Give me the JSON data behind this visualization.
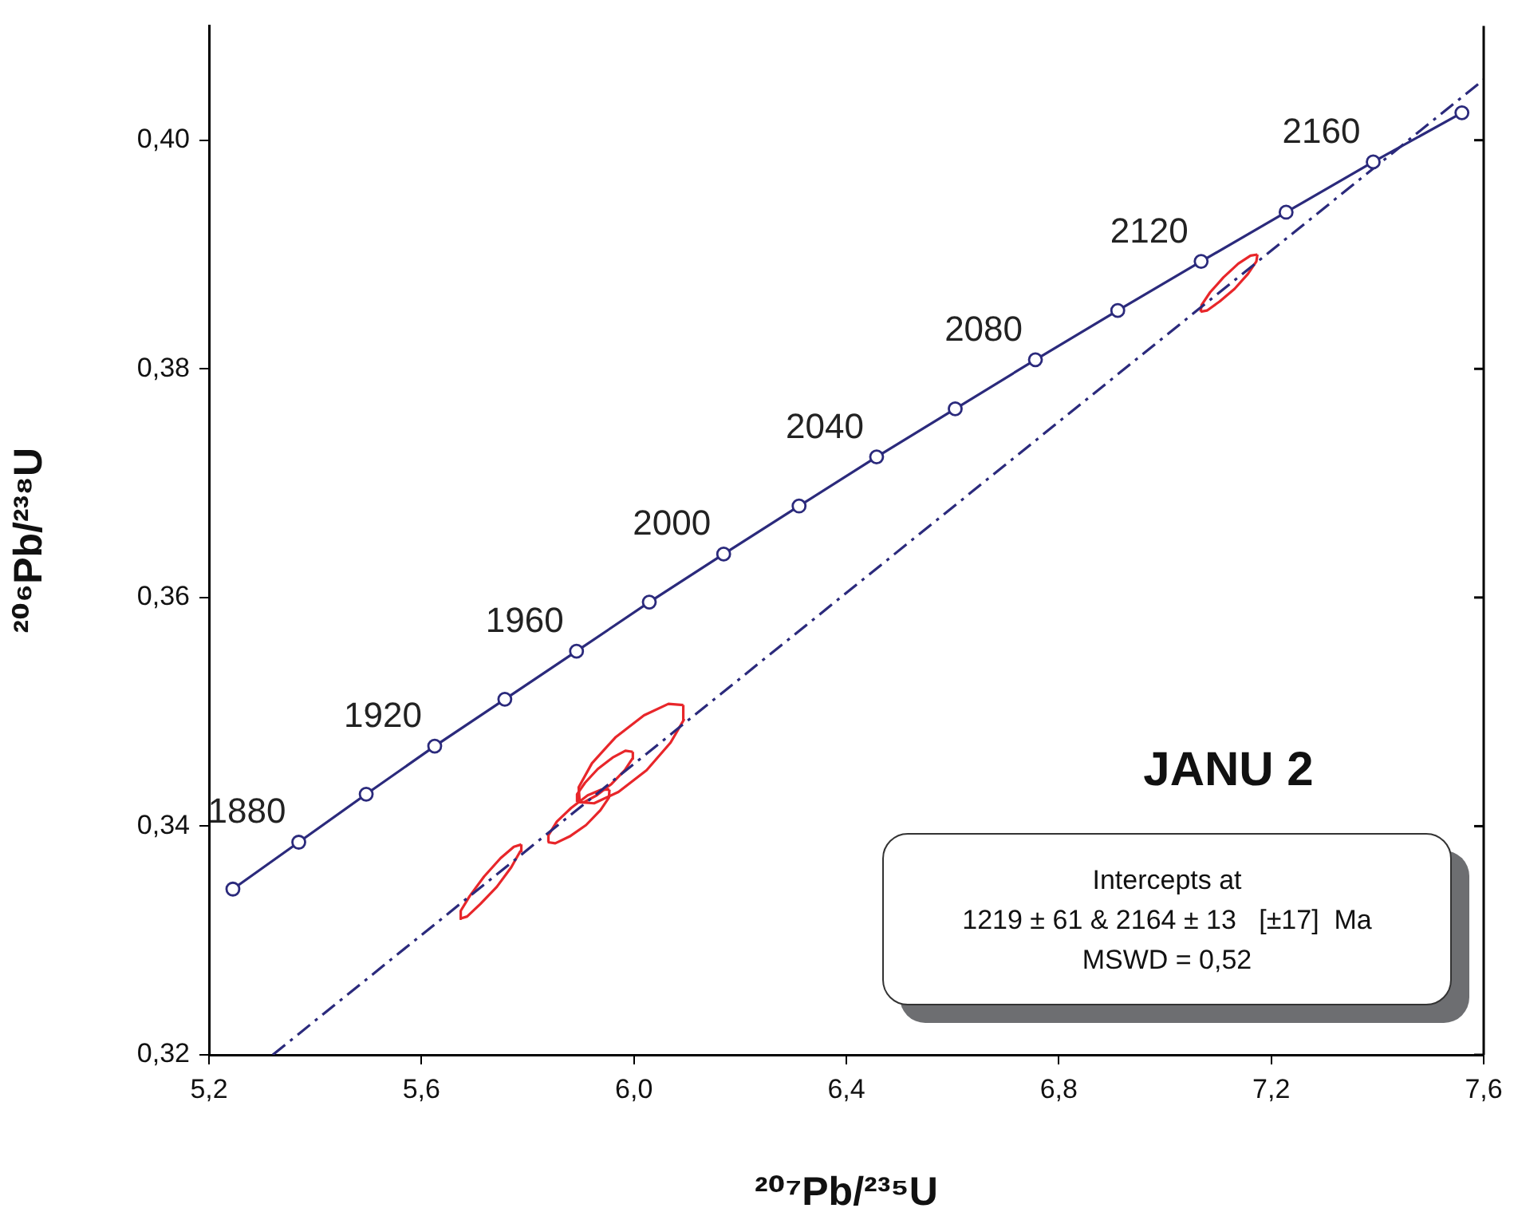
{
  "chart_data": {
    "type": "line",
    "xlabel": "²⁰⁷Pb/²³⁵U",
    "ylabel": "²⁰⁶Pb/²³⁸U",
    "xlim": [
      5.2,
      7.6
    ],
    "ylim": [
      0.32,
      0.41
    ],
    "xticks": [
      {
        "value": 5.2,
        "label": "5,2"
      },
      {
        "value": 5.6,
        "label": "5,6"
      },
      {
        "value": 6.0,
        "label": "6,0"
      },
      {
        "value": 6.4,
        "label": "6,4"
      },
      {
        "value": 6.8,
        "label": "6,8"
      },
      {
        "value": 7.2,
        "label": "7,2"
      },
      {
        "value": 7.6,
        "label": "7,6"
      }
    ],
    "yticks": [
      {
        "value": 0.32,
        "label": "0,32"
      },
      {
        "value": 0.34,
        "label": "0,34"
      },
      {
        "value": 0.36,
        "label": "0,36"
      },
      {
        "value": 0.38,
        "label": "0,38"
      },
      {
        "value": 0.4,
        "label": "0,40"
      }
    ],
    "grid": false,
    "legend": false,
    "series": [
      {
        "type": "line",
        "color": "#2b2a7c",
        "marker": "circle",
        "line_style": "solid",
        "x": [
          5.245,
          5.369,
          5.496,
          5.625,
          5.757,
          5.892,
          6.029,
          6.169,
          6.311,
          6.457,
          6.605,
          6.756,
          6.911,
          7.068,
          7.228,
          7.392,
          7.559
        ],
        "values": [
          0.3345,
          0.3386,
          0.3428,
          0.347,
          0.3511,
          0.3553,
          0.3596,
          0.3638,
          0.368,
          0.3723,
          0.3765,
          0.3808,
          0.3851,
          0.3894,
          0.3937,
          0.3981,
          0.4024
        ]
      },
      {
        "type": "line",
        "color": "#2b2a7c",
        "marker": "none",
        "line_style": "dashed",
        "x": [
          5.32,
          7.6
        ],
        "values": [
          0.32,
          0.4053
        ]
      },
      {
        "type": "line",
        "color": "#e8262a",
        "marker": "none",
        "line_style": "solid",
        "x": [
          5.672,
          5.686,
          5.711,
          5.742,
          5.769,
          5.786,
          5.788
        ],
        "values": [
          0.3319,
          0.3321,
          0.3332,
          0.3347,
          0.3364,
          0.3378,
          0.3384
        ]
      },
      {
        "type": "line",
        "color": "#e8262a",
        "marker": "none",
        "line_style": "solid",
        "x": [
          5.672,
          5.674,
          5.691,
          5.718,
          5.749,
          5.774,
          5.788
        ],
        "values": [
          0.3319,
          0.3326,
          0.3339,
          0.3356,
          0.3372,
          0.3382,
          0.3384
        ]
      },
      {
        "type": "line",
        "color": "#e8262a",
        "marker": "none",
        "line_style": "solid",
        "x": [
          5.838,
          5.852,
          5.879,
          5.91,
          5.937,
          5.953,
          5.954
        ],
        "values": [
          0.3386,
          0.3385,
          0.3391,
          0.3401,
          0.3414,
          0.3425,
          0.3432
        ]
      },
      {
        "type": "line",
        "color": "#e8262a",
        "marker": "none",
        "line_style": "solid",
        "x": [
          5.838,
          5.839,
          5.855,
          5.882,
          5.913,
          5.939,
          5.954
        ],
        "values": [
          0.3386,
          0.3392,
          0.3404,
          0.3416,
          0.3427,
          0.3432,
          0.3432
        ]
      },
      {
        "type": "line",
        "color": "#e8262a",
        "marker": "none",
        "line_style": "solid",
        "x": [
          5.893,
          5.906,
          5.93,
          5.958,
          5.983,
          5.997,
          5.998
        ],
        "values": [
          0.3421,
          0.3421,
          0.3427,
          0.3437,
          0.3449,
          0.3459,
          0.3465
        ]
      },
      {
        "type": "line",
        "color": "#e8262a",
        "marker": "none",
        "line_style": "solid",
        "x": [
          5.893,
          5.893,
          5.908,
          5.932,
          5.96,
          5.984,
          5.998
        ],
        "values": [
          0.3421,
          0.3428,
          0.3438,
          0.345,
          0.346,
          0.3466,
          0.3465
        ]
      },
      {
        "type": "line",
        "color": "#e8262a",
        "marker": "none",
        "line_style": "solid",
        "x": [
          5.898,
          5.925,
          5.971,
          6.024,
          6.069,
          6.094,
          6.093
        ],
        "values": [
          0.3421,
          0.342,
          0.343,
          0.3449,
          0.3473,
          0.3493,
          0.3506
        ]
      },
      {
        "type": "line",
        "color": "#e8262a",
        "marker": "none",
        "line_style": "solid",
        "x": [
          5.898,
          5.896,
          5.921,
          5.966,
          6.019,
          6.065,
          6.093
        ],
        "values": [
          0.3421,
          0.3434,
          0.3455,
          0.3478,
          0.3497,
          0.3507,
          0.3506
        ]
      },
      {
        "type": "line",
        "color": "#e8262a",
        "marker": "none",
        "line_style": "solid",
        "x": [
          7.067,
          7.079,
          7.103,
          7.131,
          7.156,
          7.172,
          7.174
        ],
        "values": [
          0.385,
          0.3851,
          0.3859,
          0.387,
          0.3883,
          0.3894,
          0.39
        ]
      },
      {
        "type": "line",
        "color": "#e8262a",
        "marker": "none",
        "line_style": "solid",
        "x": [
          7.067,
          7.069,
          7.085,
          7.11,
          7.138,
          7.161,
          7.174
        ],
        "values": [
          0.385,
          0.3856,
          0.3867,
          0.388,
          0.3892,
          0.3899,
          0.39
        ]
      }
    ],
    "annotations": [
      {
        "text": "1880",
        "x": 5.369,
        "y": 0.3386
      },
      {
        "text": "1920",
        "x": 5.625,
        "y": 0.347
      },
      {
        "text": "1960",
        "x": 5.892,
        "y": 0.3553
      },
      {
        "text": "2000",
        "x": 6.169,
        "y": 0.3638
      },
      {
        "text": "2040",
        "x": 6.457,
        "y": 0.3723
      },
      {
        "text": "2080",
        "x": 6.756,
        "y": 0.3808
      },
      {
        "text": "2120",
        "x": 7.068,
        "y": 0.3894
      },
      {
        "text": "2160",
        "x": 7.392,
        "y": 0.3981
      },
      "JANU 2",
      "Intercepts at",
      "1219 ± 61 & 2164 ± 13   [±17]  Ma",
      "MSWD = 0,52"
    ]
  }
}
